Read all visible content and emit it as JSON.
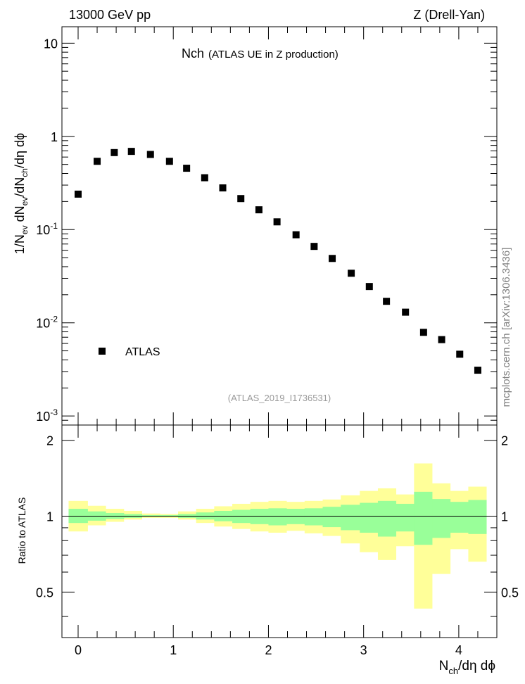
{
  "header": {
    "energy_label": "13000 GeV pp",
    "process_label": "Z (Drell-Yan)"
  },
  "watermark": {
    "side_text": "mcplots.cern.ch [arXiv:1306.3436]",
    "analysis_id": "(ATLAS_2019_I1736531)"
  },
  "chart_data": [
    {
      "type": "scatter",
      "title_main": "Nch",
      "title_sub": "(ATLAS UE in Z production)",
      "ylabel": "1/N_ev dN_ev/dN_ch/dη dϕ",
      "yscale": "log",
      "ylim": [
        0.0008,
        15
      ],
      "xlim": [
        -0.17,
        4.4
      ],
      "y_ticks": [
        {
          "base": "10",
          "exp": "-3",
          "value": 0.001
        },
        {
          "base": "10",
          "exp": "-2",
          "value": 0.01
        },
        {
          "base": "10",
          "exp": "-1",
          "value": 0.1
        },
        {
          "base": "1",
          "exp": "",
          "value": 1
        },
        {
          "base": "10",
          "exp": "",
          "value": 10
        }
      ],
      "legend": {
        "entry": "ATLAS",
        "placement": "bottom-left"
      },
      "series": [
        {
          "name": "ATLAS",
          "x": [
            0.0,
            0.2,
            0.38,
            0.56,
            0.76,
            0.96,
            1.14,
            1.33,
            1.52,
            1.71,
            1.9,
            2.09,
            2.29,
            2.48,
            2.67,
            2.87,
            3.06,
            3.24,
            3.44,
            3.63,
            3.82,
            4.01,
            4.2
          ],
          "y": [
            0.24,
            0.54,
            0.67,
            0.69,
            0.64,
            0.54,
            0.455,
            0.36,
            0.28,
            0.215,
            0.163,
            0.121,
            0.088,
            0.066,
            0.049,
            0.034,
            0.0245,
            0.017,
            0.013,
            0.0079,
            0.0066,
            0.0046,
            0.0031
          ]
        }
      ]
    },
    {
      "type": "area",
      "ylabel": "Ratio to ATLAS",
      "xlabel": "N_ch/dη dϕ",
      "ylim": [
        0.33,
        2.3
      ],
      "xlim": [
        -0.17,
        4.4
      ],
      "y_ticks": [
        "0.5",
        "1",
        "2"
      ],
      "x_ticks": [
        "0",
        "1",
        "2",
        "3",
        "4"
      ],
      "reference_line": 1,
      "bin_edges": [
        -0.1,
        0.1,
        0.29,
        0.48,
        0.67,
        0.86,
        1.05,
        1.24,
        1.43,
        1.62,
        1.81,
        2.0,
        2.19,
        2.38,
        2.57,
        2.76,
        2.96,
        3.15,
        3.34,
        3.53,
        3.72,
        3.91,
        4.1,
        4.29
      ],
      "bands": [
        {
          "name": "outer",
          "color": "#ffff99",
          "low": [
            0.87,
            0.92,
            0.95,
            0.97,
            0.985,
            0.985,
            0.97,
            0.94,
            0.91,
            0.89,
            0.87,
            0.86,
            0.875,
            0.855,
            0.835,
            0.78,
            0.72,
            0.67,
            0.76,
            0.43,
            0.59,
            0.74,
            0.66
          ],
          "high": [
            1.15,
            1.1,
            1.07,
            1.05,
            1.025,
            1.02,
            1.045,
            1.07,
            1.095,
            1.12,
            1.14,
            1.15,
            1.14,
            1.15,
            1.165,
            1.21,
            1.26,
            1.29,
            1.22,
            1.62,
            1.35,
            1.26,
            1.31
          ]
        },
        {
          "name": "inner",
          "color": "#99ff99",
          "low": [
            0.94,
            0.96,
            0.975,
            0.985,
            0.995,
            0.995,
            0.985,
            0.97,
            0.955,
            0.94,
            0.93,
            0.92,
            0.93,
            0.92,
            0.905,
            0.88,
            0.86,
            0.83,
            0.87,
            0.77,
            0.82,
            0.86,
            0.85
          ],
          "high": [
            1.07,
            1.045,
            1.03,
            1.02,
            1.01,
            1.01,
            1.02,
            1.035,
            1.05,
            1.06,
            1.07,
            1.075,
            1.07,
            1.075,
            1.09,
            1.11,
            1.13,
            1.15,
            1.12,
            1.25,
            1.17,
            1.14,
            1.16
          ]
        }
      ]
    }
  ]
}
